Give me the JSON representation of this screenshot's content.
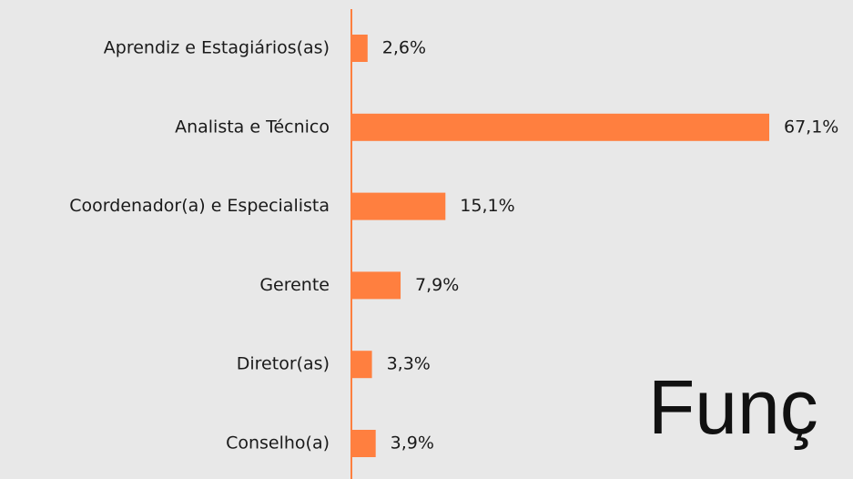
{
  "chart_data": {
    "type": "barh",
    "categories": [
      "Aprendiz e Estagiários(as)",
      "Analista e Técnico",
      "Coordenador(a) e Especialista",
      "Gerente",
      "Diretor(as)",
      "Conselho(a)"
    ],
    "values": [
      2.6,
      67.1,
      15.1,
      7.9,
      3.3,
      3.9
    ],
    "value_labels": [
      "2,6%",
      "67,1%",
      "15,1%",
      "7,9%",
      "3,3%",
      "3,9%"
    ],
    "color": "#ff7f3f",
    "annotation": "Funç"
  }
}
